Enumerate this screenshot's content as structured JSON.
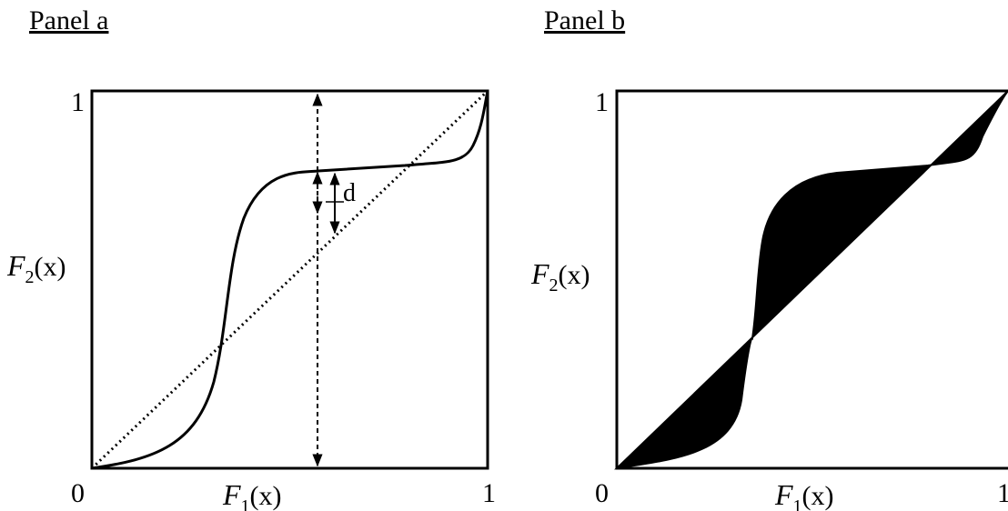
{
  "panels": [
    {
      "title": "Panel a",
      "x_tick_min": "0",
      "x_tick_max": "1",
      "y_tick_max": "1",
      "x_axis": {
        "letter": "F",
        "subscript": "1",
        "argument": "(x)"
      },
      "y_axis": {
        "letter": "F",
        "subscript": "2",
        "argument": "(x)"
      },
      "annotation": "d"
    },
    {
      "title": "Panel b",
      "x_tick_min": "0",
      "x_tick_max": "1",
      "y_tick_max": "1",
      "x_axis": {
        "letter": "F",
        "subscript": "1",
        "argument": "(x)"
      },
      "y_axis": {
        "letter": "F",
        "subscript": "2",
        "argument": "(x)"
      }
    }
  ],
  "colors": {
    "ink": "#000000",
    "background": "#ffffff"
  }
}
